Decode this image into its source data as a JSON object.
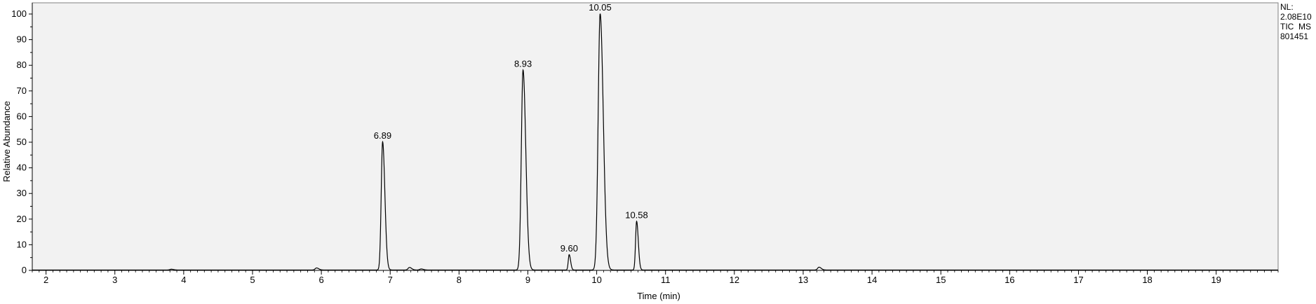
{
  "chart_data": {
    "type": "line",
    "title": "",
    "xlabel": "Time (min)",
    "ylabel": "Relative Abundance",
    "xlim": [
      1.8,
      19.9
    ],
    "ylim": [
      0,
      100
    ],
    "x_ticks": [
      2,
      3,
      4,
      5,
      6,
      7,
      8,
      9,
      10,
      11,
      12,
      13,
      14,
      15,
      16,
      17,
      18,
      19
    ],
    "y_ticks": [
      0,
      10,
      20,
      30,
      40,
      50,
      60,
      70,
      80,
      90,
      100
    ],
    "grid": false,
    "legend": "none",
    "colors": {
      "plot_background": "#f2f2f2",
      "trace": "#000000"
    },
    "info_box": [
      "NL:",
      "2.08E10",
      "TIC  MS",
      "801451"
    ],
    "peaks": [
      {
        "x": 6.89,
        "y": 50,
        "label": "6.89"
      },
      {
        "x": 8.93,
        "y": 78,
        "label": "8.93"
      },
      {
        "x": 9.6,
        "y": 6,
        "label": "9.60"
      },
      {
        "x": 10.05,
        "y": 100,
        "label": "10.05"
      },
      {
        "x": 10.58,
        "y": 19,
        "label": "10.58"
      }
    ],
    "minor_peaks": [
      {
        "x": 3.82,
        "y": 0.3
      },
      {
        "x": 5.93,
        "y": 0.8
      },
      {
        "x": 7.28,
        "y": 1.0
      },
      {
        "x": 7.45,
        "y": 0.4
      },
      {
        "x": 13.23,
        "y": 1.1
      }
    ]
  }
}
